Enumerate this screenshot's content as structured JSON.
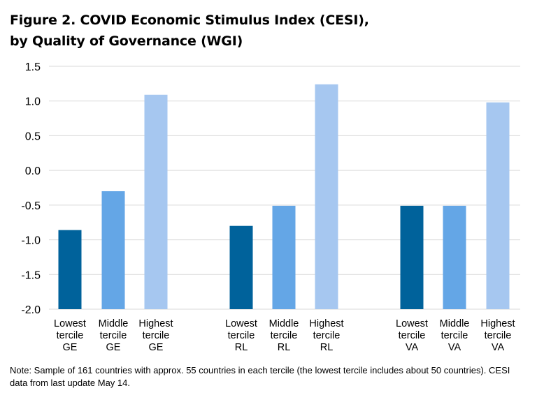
{
  "title": {
    "line1": "Figure 2. COVID Economic Stimulus Index (CESI),",
    "line2": "by Quality of Governance (WGI)"
  },
  "note": "Note: Sample of 161 countries with approx. 55 countries in each tercile (the lowest tercile includes about 50 countries). CESI data from last update May 14.",
  "chart_data": {
    "type": "bar",
    "title": "Figure 2. COVID Economic Stimulus Index (CESI), by Quality of Governance (WGI)",
    "xlabel": "",
    "ylabel": "",
    "ylim": [
      -2.0,
      1.5
    ],
    "yticks": [
      "1.5",
      "1.0",
      "0.5",
      "0.0",
      "-0.5",
      "-1.0",
      "-1.5",
      "-2.0"
    ],
    "ytick_values": [
      1.5,
      1.0,
      0.5,
      0.0,
      -0.5,
      -1.0,
      -1.5,
      -2.0
    ],
    "grid": true,
    "legend": "none",
    "groups": [
      "GE",
      "RL",
      "VA"
    ],
    "categories": [
      [
        "Lowest",
        "tercile",
        "GE"
      ],
      [
        "Middle",
        "tercile",
        "GE"
      ],
      [
        "Highest",
        "tercile",
        "GE"
      ],
      [
        "Lowest",
        "tercile",
        "RL"
      ],
      [
        "Middle",
        "tercile",
        "RL"
      ],
      [
        "Highest",
        "tercile",
        "RL"
      ],
      [
        "Lowest",
        "tercile",
        "VA"
      ],
      [
        "Middle",
        "tercile",
        "VA"
      ],
      [
        "Highest",
        "tercile",
        "VA"
      ]
    ],
    "values": [
      -0.86,
      -0.3,
      1.09,
      -0.8,
      -0.51,
      1.24,
      -0.51,
      -0.51,
      0.98
    ],
    "colors": [
      "#00629b",
      "#64a6e6",
      "#a6c7f0",
      "#00629b",
      "#64a6e6",
      "#a6c7f0",
      "#00629b",
      "#64a6e6",
      "#a6c7f0"
    ],
    "grid_color": "#d9d9d9"
  }
}
